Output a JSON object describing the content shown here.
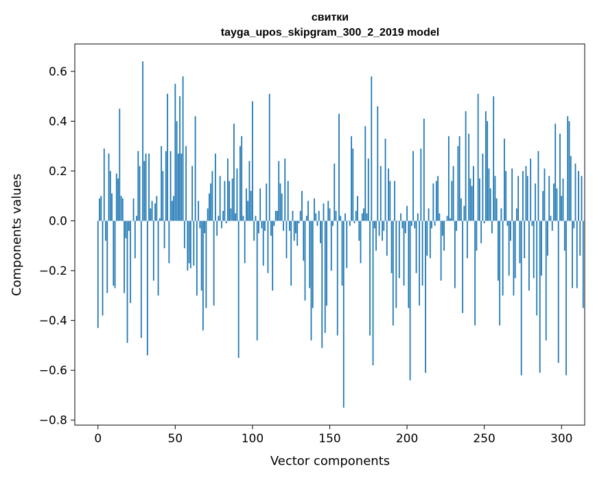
{
  "chart_data": {
    "type": "bar",
    "title": "свитки",
    "subtitle": "tayga_upos_skipgram_300_2_2019 model",
    "xlabel": "Vector components",
    "ylabel": "Components values",
    "xlim": [
      -15,
      315
    ],
    "ylim": [
      -0.82,
      0.71
    ],
    "xticks": [
      0,
      50,
      100,
      150,
      200,
      250,
      300
    ],
    "xtick_labels": [
      "0",
      "50",
      "100",
      "150",
      "200",
      "250",
      "300"
    ],
    "yticks": [
      -0.8,
      -0.6,
      -0.4,
      -0.2,
      0.0,
      0.2,
      0.4,
      0.6
    ],
    "ytick_labels": [
      "−0.8",
      "−0.6",
      "−0.4",
      "−0.2",
      "0.0",
      "0.2",
      "0.4",
      "0.6"
    ],
    "grid": false,
    "bar_color": "#1f77b4",
    "values": [
      -0.43,
      0.09,
      0.1,
      -0.38,
      0.29,
      -0.08,
      -0.29,
      0.27,
      0.2,
      0.11,
      -0.26,
      -0.27,
      0.19,
      0.17,
      0.45,
      0.1,
      0.09,
      -0.29,
      -0.07,
      -0.49,
      -0.04,
      -0.33,
      0.0,
      0.09,
      -0.15,
      0.02,
      0.28,
      0.22,
      -0.47,
      0.64,
      0.24,
      0.27,
      -0.54,
      0.27,
      0.05,
      0.08,
      -0.24,
      0.07,
      0.1,
      -0.3,
      0.01,
      0.3,
      0.2,
      -0.11,
      0.28,
      0.51,
      -0.17,
      0.28,
      0.08,
      0.1,
      0.55,
      0.4,
      0.27,
      0.5,
      0.27,
      0.58,
      -0.11,
      0.3,
      -0.2,
      -0.17,
      -0.19,
      0.22,
      -0.18,
      0.42,
      -0.3,
      0.08,
      -0.03,
      -0.28,
      -0.44,
      -0.05,
      -0.35,
      0.05,
      0.11,
      0.15,
      0.2,
      -0.34,
      0.27,
      -0.06,
      0.02,
      0.18,
      -0.03,
      0.04,
      0.16,
      -0.01,
      0.25,
      0.16,
      0.05,
      0.17,
      0.39,
      0.03,
      0.21,
      -0.55,
      0.3,
      0.34,
      0.02,
      -0.17,
      0.13,
      0.08,
      0.24,
      0.12,
      0.48,
      -0.08,
      0.02,
      -0.48,
      -0.05,
      0.13,
      -0.03,
      -0.18,
      -0.04,
      0.15,
      -0.21,
      0.51,
      -0.06,
      -0.28,
      -0.02,
      0.04,
      0.04,
      0.24,
      0.15,
      0.11,
      -0.04,
      0.25,
      -0.15,
      0.16,
      -0.04,
      -0.26,
      0.04,
      -0.08,
      -0.05,
      -0.1,
      -0.01,
      0.04,
      0.12,
      -0.16,
      -0.32,
      0.02,
      0.08,
      -0.27,
      -0.48,
      -0.35,
      0.09,
      0.03,
      -0.02,
      0.04,
      -0.09,
      -0.51,
      0.07,
      -0.45,
      -0.34,
      0.08,
      0.05,
      -0.2,
      -0.02,
      0.23,
      0.04,
      -0.46,
      0.43,
      0.02,
      -0.26,
      -0.75,
      0.03,
      -0.19,
      0.0,
      -0.02,
      0.34,
      0.29,
      -0.01,
      0.04,
      0.1,
      -0.08,
      -0.17,
      0.03,
      0.05,
      0.38,
      0.03,
      0.25,
      -0.46,
      0.58,
      -0.58,
      -0.03,
      -0.12,
      0.46,
      -0.06,
      0.22,
      -0.08,
      -0.04,
      0.33,
      -0.14,
      0.21,
      0.16,
      -0.21,
      -0.42,
      0.16,
      -0.35,
      0.0,
      -0.23,
      0.03,
      -0.03,
      -0.26,
      -0.05,
      0.06,
      -0.35,
      -0.64,
      -0.02,
      0.28,
      -0.03,
      -0.21,
      0.03,
      -0.34,
      0.29,
      -0.26,
      0.41,
      -0.61,
      -0.14,
      0.05,
      -0.15,
      -0.03,
      0.15,
      -0.02,
      0.16,
      0.18,
      0.03,
      -0.24,
      -0.06,
      -0.12,
      0.0,
      0.02,
      0.34,
      0.01,
      0.16,
      0.22,
      -0.27,
      -0.04,
      0.3,
      0.34,
      0.09,
      -0.37,
      0.06,
      0.44,
      -0.15,
      0.35,
      0.17,
      0.14,
      0.22,
      -0.42,
      -0.12,
      0.51,
      0.17,
      -0.09,
      0.27,
      -0.01,
      0.44,
      0.4,
      0.21,
      0.13,
      -0.05,
      0.5,
      0.18,
      0.09,
      -0.24,
      -0.42,
      0.05,
      -0.3,
      0.33,
      0.2,
      -0.02,
      -0.22,
      -0.08,
      0.21,
      -0.3,
      -0.23,
      0.05,
      0.18,
      -0.17,
      -0.62,
      0.2,
      -0.15,
      0.22,
      0.18,
      -0.28,
      0.25,
      -0.02,
      -0.23,
      0.15,
      -0.38,
      0.28,
      -0.61,
      -0.22,
      0.12,
      0.21,
      -0.48,
      -0.14,
      0.18,
      0.02,
      -0.04,
      0.15,
      0.39,
      0.13,
      -0.57,
      0.35,
      0.1,
      0.17,
      -0.12,
      -0.62,
      0.42,
      0.4,
      0.26,
      -0.27,
      -0.03,
      0.23,
      -0.27,
      0.2,
      -0.14,
      0.18,
      -0.35
    ]
  }
}
